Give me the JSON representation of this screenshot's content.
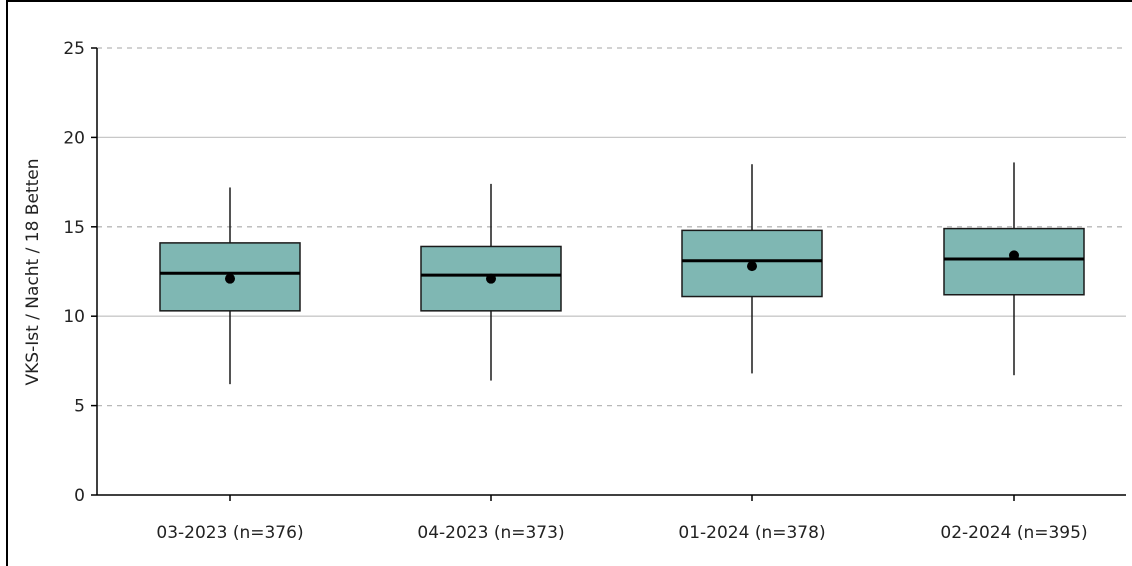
{
  "chart_data": {
    "type": "boxplot",
    "title": "",
    "xlabel": "",
    "ylabel": "VKS-Ist / Nacht / 18 Betten",
    "ylim": [
      0,
      25
    ],
    "yticks": [
      0,
      5,
      10,
      15,
      20,
      25
    ],
    "ytick_labels": [
      "0",
      "5",
      "10",
      "15",
      "20",
      "25"
    ],
    "grid": {
      "solid": [
        10,
        20
      ],
      "dashed": [
        5,
        15,
        25
      ]
    },
    "categories": [
      "03-2023 (n=376)",
      "04-2023 (n=373)",
      "01-2024 (n=378)",
      "02-2024 (n=395)"
    ],
    "series": [
      {
        "min": [
          6.2,
          6.4,
          6.8,
          6.7
        ],
        "q1": [
          10.3,
          10.3,
          11.1,
          11.2
        ],
        "median": [
          12.4,
          12.3,
          13.1,
          13.2
        ],
        "q3": [
          14.1,
          13.9,
          14.8,
          14.9
        ],
        "max": [
          17.2,
          17.4,
          18.5,
          18.6
        ],
        "mean": [
          12.1,
          12.1,
          12.8,
          13.4
        ]
      }
    ],
    "colors": {
      "box_fill": "#7fb7b3",
      "box_stroke": "#1a1a1a",
      "median": "#000000",
      "mean_dot": "#000000",
      "grid_solid": "#c8c8c8",
      "grid_dashed": "#b8b8b8"
    }
  }
}
